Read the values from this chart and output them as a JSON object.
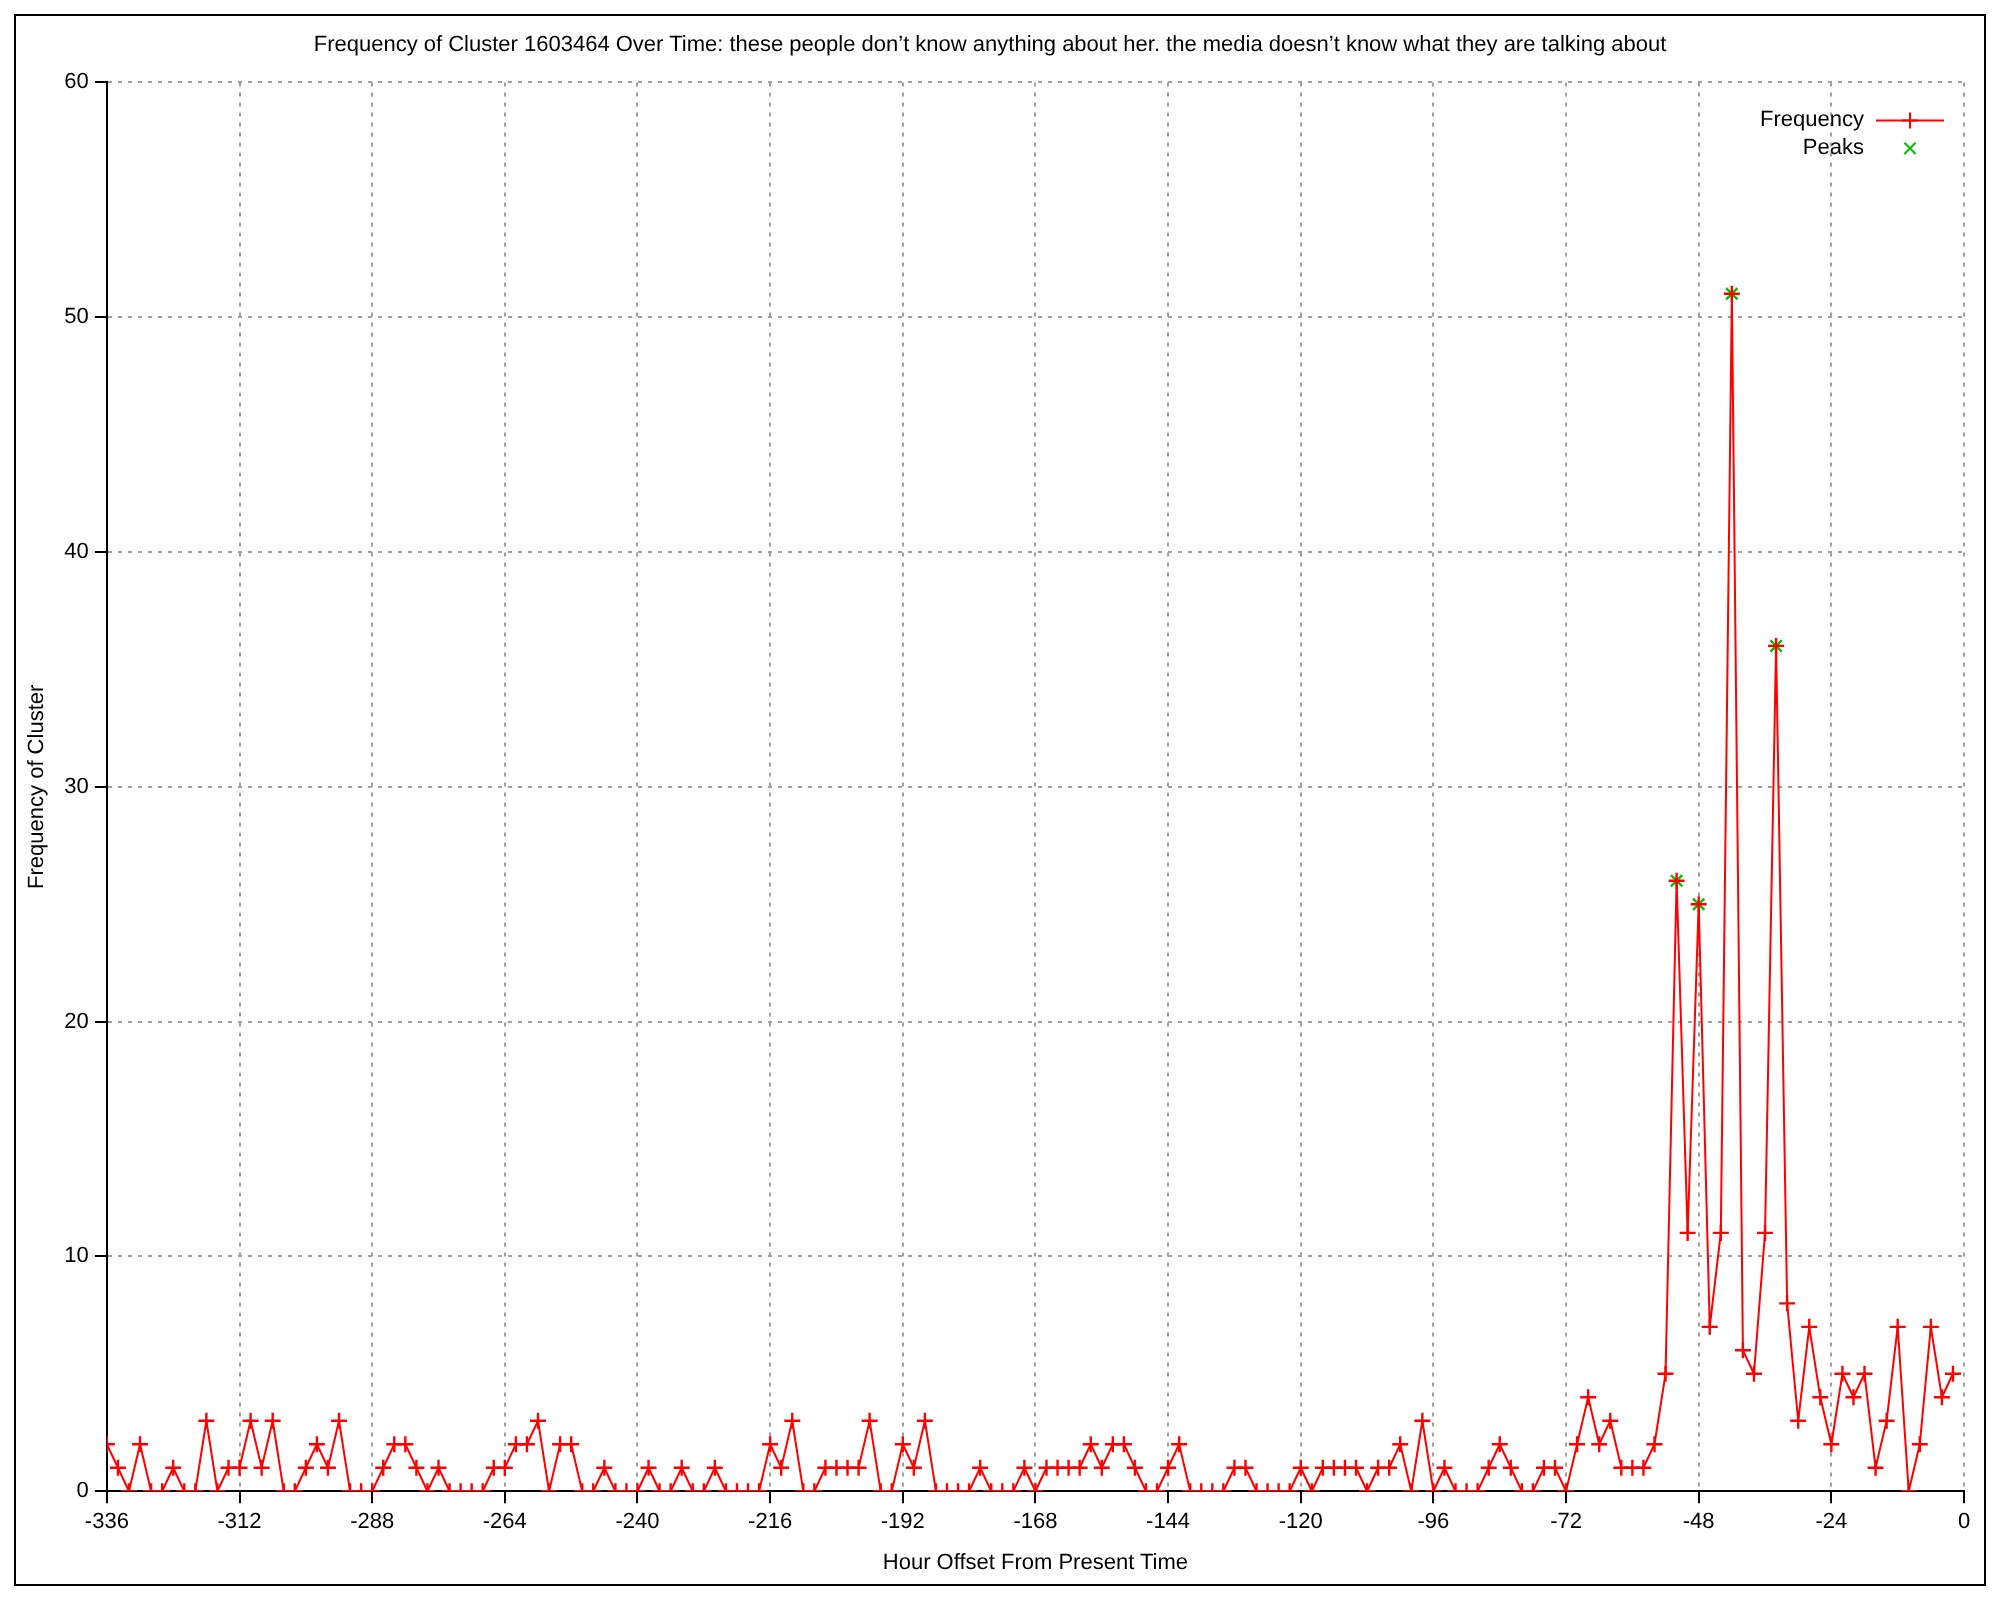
{
  "chart_data": {
    "type": "line",
    "title": "Frequency of Cluster 1603464 Over Time: these people don’t know anything about her. the media doesn’t know what they are talking about",
    "xlabel": "Hour Offset From Present Time",
    "ylabel": "Frequency of Cluster",
    "xlim": [
      -336,
      0
    ],
    "xticks": [
      -336,
      -312,
      -288,
      -264,
      -240,
      -216,
      -192,
      -168,
      -144,
      -120,
      -96,
      -72,
      -48,
      -24,
      0
    ],
    "ylim": [
      0,
      60
    ],
    "yticks": [
      0,
      10,
      20,
      30,
      40,
      50,
      60
    ],
    "grid": true,
    "legend": "top right",
    "line_style": "solid",
    "series": [
      {
        "name": "Frequency",
        "color": "#ff0000",
        "marker": "cross",
        "x": [
          -336,
          -334,
          -332,
          -330,
          -328,
          -326,
          -324,
          -322,
          -320,
          -318,
          -316,
          -314,
          -312,
          -310,
          -308,
          -306,
          -304,
          -302,
          -300,
          -298,
          -296,
          -294,
          -292,
          -290,
          -288,
          -286,
          -284,
          -282,
          -280,
          -278,
          -276,
          -274,
          -272,
          -270,
          -268,
          -266,
          -264,
          -262,
          -260,
          -258,
          -256,
          -254,
          -252,
          -250,
          -248,
          -246,
          -244,
          -242,
          -240,
          -238,
          -236,
          -234,
          -232,
          -230,
          -228,
          -226,
          -224,
          -222,
          -220,
          -218,
          -216,
          -214,
          -212,
          -210,
          -208,
          -206,
          -204,
          -202,
          -200,
          -198,
          -196,
          -194,
          -192,
          -190,
          -188,
          -186,
          -184,
          -182,
          -180,
          -178,
          -176,
          -174,
          -172,
          -170,
          -168,
          -166,
          -164,
          -162,
          -160,
          -158,
          -156,
          -154,
          -152,
          -150,
          -148,
          -146,
          -144,
          -142,
          -140,
          -138,
          -136,
          -134,
          -132,
          -130,
          -128,
          -126,
          -124,
          -122,
          -120,
          -118,
          -116,
          -114,
          -112,
          -110,
          -108,
          -106,
          -104,
          -102,
          -100,
          -98,
          -96,
          -94,
          -92,
          -90,
          -88,
          -86,
          -84,
          -82,
          -80,
          -78,
          -76,
          -74,
          -72,
          -70,
          -68,
          -66,
          -64,
          -62,
          -60,
          -58,
          -56,
          -54,
          -52,
          -50,
          -48,
          -46,
          -44,
          -42,
          -40,
          -38,
          -36,
          -34,
          -32,
          -30,
          -28,
          -26,
          -24,
          -22,
          -20,
          -18,
          -16,
          -14,
          -12,
          -10,
          -8,
          -6,
          -4,
          -2
        ],
        "values": [
          2,
          1,
          0,
          2,
          0,
          0,
          1,
          0,
          0,
          3,
          0,
          1,
          1,
          3,
          1,
          3,
          0,
          0,
          1,
          2,
          1,
          3,
          0,
          0,
          0,
          1,
          2,
          2,
          1,
          0,
          1,
          0,
          0,
          0,
          0,
          1,
          1,
          2,
          2,
          3,
          0,
          2,
          2,
          0,
          0,
          1,
          0,
          0,
          0,
          1,
          0,
          0,
          1,
          0,
          0,
          1,
          0,
          0,
          0,
          0,
          2,
          1,
          3,
          0,
          0,
          1,
          1,
          1,
          1,
          3,
          0,
          0,
          2,
          1,
          3,
          0,
          0,
          0,
          0,
          1,
          0,
          0,
          0,
          1,
          0,
          1,
          1,
          1,
          1,
          2,
          1,
          2,
          2,
          1,
          0,
          0,
          1,
          2,
          0,
          0,
          0,
          0,
          1,
          1,
          0,
          0,
          0,
          0,
          1,
          0,
          1,
          1,
          1,
          1,
          0,
          1,
          1,
          2,
          0,
          3,
          0,
          1,
          0,
          0,
          0,
          1,
          2,
          1,
          0,
          0,
          1,
          1,
          0,
          2,
          4,
          2,
          3,
          1,
          1,
          1,
          2,
          5,
          26,
          11,
          25,
          7,
          11,
          51,
          6,
          5,
          11,
          36,
          8,
          3,
          7,
          4,
          2,
          5,
          4,
          5,
          1,
          3,
          7,
          0,
          2,
          7,
          4,
          5
        ]
      },
      {
        "name": "Peaks",
        "type": "scatter",
        "color": "#00c000",
        "marker": "cross",
        "x": [
          -52,
          -48,
          -42,
          -34
        ],
        "values": [
          26,
          25,
          51,
          36
        ]
      }
    ]
  }
}
